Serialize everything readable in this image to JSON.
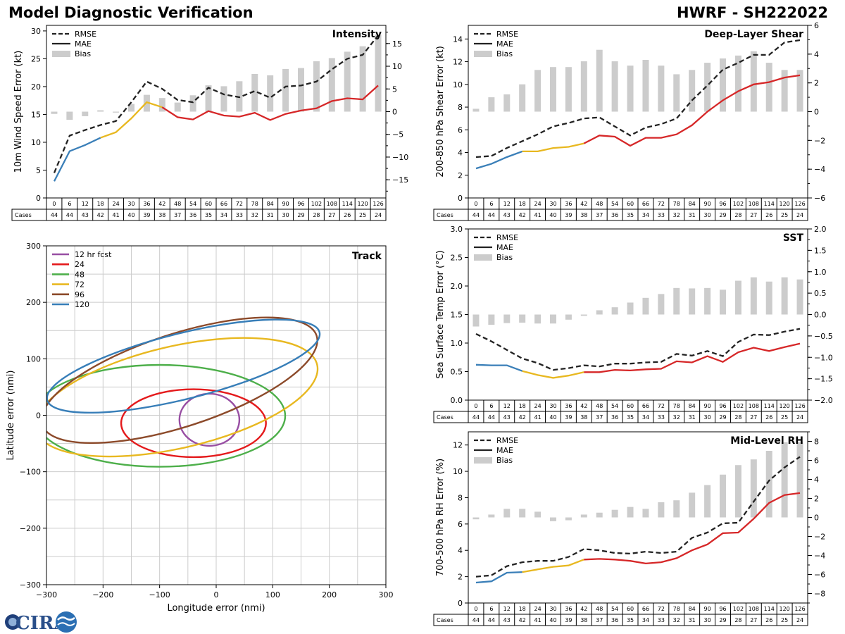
{
  "header": {
    "title": "Model Diagnostic Verification",
    "storm": "HWRF - SH222022"
  },
  "logo": {
    "text": "CIRA"
  },
  "colors": {
    "rmse": "#222222",
    "mae": "#222222",
    "bias": "#cccccc",
    "c12": "#3a7fb8",
    "c24": "#e8b820",
    "c48": "#d62728",
    "track12": "#984ea3",
    "track24": "#e41a1c",
    "track48": "#4daf4a",
    "track72": "#e8b820",
    "track96": "#8c4a2a",
    "track120": "#377eb8"
  },
  "legend": {
    "rmse": "RMSE",
    "mae": "MAE",
    "bias": "Bias"
  },
  "cases_label": "Cases",
  "chart_data": [
    {
      "id": "intensity",
      "type": "line",
      "title": "Intensity",
      "ylabel": "10m Wind Speed Error (kt)",
      "ylim": [
        0,
        31
      ],
      "yticks": [
        0,
        5,
        10,
        15,
        20,
        25,
        30
      ],
      "y2lim": [
        -19,
        19
      ],
      "y2ticks": [
        -15,
        -10,
        -5,
        0,
        5,
        10,
        15
      ],
      "x": [
        0,
        6,
        12,
        18,
        24,
        30,
        36,
        42,
        48,
        54,
        60,
        66,
        72,
        78,
        84,
        90,
        96,
        102,
        108,
        114,
        120,
        126
      ],
      "cases": [
        44,
        44,
        43,
        42,
        41,
        40,
        39,
        38,
        37,
        36,
        35,
        34,
        33,
        32,
        31,
        30,
        29,
        28,
        27,
        26,
        25,
        24
      ],
      "rmse": [
        4.5,
        11.2,
        12.2,
        13.1,
        13.8,
        17.2,
        20.9,
        19.6,
        17.6,
        17.2,
        19.8,
        18.6,
        18.1,
        19.2,
        18.0,
        20.0,
        20.2,
        20.9,
        23.1,
        25.0,
        25.7,
        29.2
      ],
      "mae": [
        3.0,
        8.4,
        9.5,
        10.8,
        11.8,
        14.3,
        17.2,
        16.3,
        14.5,
        14.1,
        15.6,
        14.8,
        14.6,
        15.3,
        14.0,
        15.1,
        15.7,
        16.1,
        17.4,
        17.9,
        17.7,
        20.2
      ],
      "bias": [
        -0.5,
        -1.8,
        -1.0,
        0.3,
        -0.2,
        1.7,
        3.7,
        3.0,
        2.0,
        3.6,
        5.8,
        5.6,
        6.7,
        8.3,
        8.0,
        9.4,
        9.6,
        11.1,
        11.8,
        13.2,
        14.4,
        17.0
      ]
    },
    {
      "id": "shear",
      "type": "line",
      "title": "Deep-Layer Shear",
      "ylabel": "200-850 hPa Shear Error (kt)",
      "ylim": [
        0,
        15.2
      ],
      "yticks": [
        0,
        2,
        4,
        6,
        8,
        10,
        12,
        14
      ],
      "y2lim": [
        -6,
        6
      ],
      "y2ticks": [
        -6,
        -4,
        -2,
        0,
        2,
        4,
        6
      ],
      "x": [
        0,
        6,
        12,
        18,
        24,
        30,
        36,
        42,
        48,
        54,
        60,
        66,
        72,
        78,
        84,
        90,
        96,
        102,
        108,
        114,
        120,
        126
      ],
      "cases": [
        44,
        44,
        43,
        42,
        41,
        40,
        39,
        38,
        37,
        36,
        35,
        34,
        33,
        32,
        31,
        30,
        29,
        28,
        27,
        26,
        25,
        24
      ],
      "rmse": [
        3.6,
        3.7,
        4.4,
        5.0,
        5.6,
        6.3,
        6.6,
        7.0,
        7.1,
        6.3,
        5.5,
        6.2,
        6.5,
        7.0,
        8.6,
        9.9,
        11.3,
        11.9,
        12.6,
        12.6,
        13.7,
        13.9
      ],
      "mae": [
        2.6,
        3.0,
        3.6,
        4.1,
        4.1,
        4.4,
        4.5,
        4.8,
        5.5,
        5.4,
        4.6,
        5.3,
        5.3,
        5.6,
        6.4,
        7.6,
        8.6,
        9.4,
        10.0,
        10.2,
        10.6,
        10.8
      ],
      "bias": [
        0.2,
        1.0,
        1.2,
        1.9,
        2.9,
        3.1,
        3.1,
        3.5,
        4.3,
        3.5,
        3.2,
        3.6,
        3.2,
        2.6,
        2.9,
        3.4,
        3.7,
        3.9,
        4.2,
        3.4,
        2.9,
        2.9
      ]
    },
    {
      "id": "sst",
      "type": "line",
      "title": "SST",
      "ylabel": "Sea Surface Temp Error (°C)",
      "ylim": [
        0,
        3.0
      ],
      "yticks": [
        0.0,
        0.5,
        1.0,
        1.5,
        2.0,
        2.5,
        3.0
      ],
      "y2lim": [
        -2.0,
        2.0
      ],
      "y2ticks": [
        -2.0,
        -1.5,
        -1.0,
        -0.5,
        0.0,
        0.5,
        1.0,
        1.5,
        2.0
      ],
      "x": [
        0,
        6,
        12,
        18,
        24,
        30,
        36,
        42,
        48,
        54,
        60,
        66,
        72,
        78,
        84,
        90,
        96,
        102,
        108,
        114,
        120,
        126
      ],
      "cases": [
        44,
        44,
        43,
        42,
        41,
        40,
        39,
        38,
        37,
        36,
        35,
        34,
        33,
        32,
        31,
        30,
        29,
        28,
        27,
        26,
        25,
        24
      ],
      "rmse": [
        1.16,
        1.03,
        0.88,
        0.73,
        0.65,
        0.53,
        0.56,
        0.61,
        0.59,
        0.64,
        0.64,
        0.66,
        0.67,
        0.81,
        0.78,
        0.86,
        0.77,
        1.02,
        1.15,
        1.14,
        1.2,
        1.25
      ],
      "mae": [
        0.62,
        0.61,
        0.61,
        0.51,
        0.44,
        0.39,
        0.43,
        0.49,
        0.49,
        0.53,
        0.52,
        0.54,
        0.55,
        0.68,
        0.66,
        0.77,
        0.67,
        0.84,
        0.92,
        0.86,
        0.93,
        0.99
      ],
      "bias": [
        -0.28,
        -0.24,
        -0.2,
        -0.19,
        -0.21,
        -0.21,
        -0.12,
        -0.03,
        0.1,
        0.17,
        0.28,
        0.39,
        0.48,
        0.62,
        0.61,
        0.62,
        0.58,
        0.79,
        0.87,
        0.77,
        0.87,
        0.82
      ]
    },
    {
      "id": "rh",
      "type": "line",
      "title": "Mid-Level RH",
      "ylabel": "700-500 hPa RH Error (%)",
      "ylim": [
        0,
        13
      ],
      "yticks": [
        0,
        2,
        4,
        6,
        8,
        10,
        12
      ],
      "y2lim": [
        -9,
        9
      ],
      "y2ticks": [
        -8,
        -6,
        -4,
        -2,
        0,
        2,
        4,
        6,
        8
      ],
      "x": [
        0,
        6,
        12,
        18,
        24,
        30,
        36,
        42,
        48,
        54,
        60,
        66,
        72,
        78,
        84,
        90,
        96,
        102,
        108,
        114,
        120,
        126
      ],
      "cases": [
        44,
        44,
        43,
        42,
        41,
        40,
        39,
        38,
        37,
        36,
        35,
        34,
        33,
        32,
        31,
        30,
        29,
        28,
        27,
        26,
        25,
        24
      ],
      "rmse": [
        2.0,
        2.1,
        2.8,
        3.1,
        3.2,
        3.2,
        3.5,
        4.1,
        4.0,
        3.8,
        3.75,
        3.9,
        3.8,
        3.9,
        4.95,
        5.35,
        6.05,
        6.1,
        7.7,
        9.3,
        10.3,
        11.1
      ],
      "mae": [
        1.55,
        1.65,
        2.3,
        2.35,
        2.55,
        2.75,
        2.85,
        3.3,
        3.35,
        3.3,
        3.2,
        3.0,
        3.1,
        3.4,
        4.0,
        4.45,
        5.3,
        5.35,
        6.4,
        7.6,
        8.2,
        8.35
      ],
      "bias": [
        -0.2,
        0.3,
        0.9,
        0.9,
        0.6,
        -0.4,
        -0.3,
        0.3,
        0.5,
        0.8,
        1.1,
        0.9,
        1.6,
        1.8,
        2.6,
        3.4,
        4.5,
        5.5,
        6.1,
        7.0,
        7.9,
        7.9
      ]
    },
    {
      "id": "track",
      "type": "ellipse",
      "title": "Track",
      "xlabel": "Longitude error (nmi)",
      "ylabel": "Latitude error (nmi)",
      "xlim": [
        -300,
        300
      ],
      "ylim": [
        -300,
        300
      ],
      "xticks": [
        -300,
        -200,
        -100,
        0,
        100,
        200,
        300
      ],
      "yticks": [
        -300,
        -200,
        -100,
        0,
        100,
        200,
        300
      ],
      "series": [
        {
          "name": "12 hr fcst",
          "cx": -12,
          "cy": -8,
          "rx": 53,
          "ry": 46,
          "angle": 0
        },
        {
          "name": "24",
          "cx": -40,
          "cy": -14,
          "rx": 128,
          "ry": 60,
          "angle": 0
        },
        {
          "name": "48",
          "cx": -100,
          "cy": -1,
          "rx": 222,
          "ry": 90,
          "angle": 0
        },
        {
          "name": "72",
          "cx": -70,
          "cy": 32,
          "rx": 255,
          "ry": 90,
          "angle": -13
        },
        {
          "name": "96",
          "cx": -65,
          "cy": 62,
          "rx": 255,
          "ry": 82,
          "angle": -18
        },
        {
          "name": "120",
          "cx": -58,
          "cy": 87,
          "rx": 248,
          "ry": 58,
          "angle": -14
        }
      ]
    }
  ]
}
